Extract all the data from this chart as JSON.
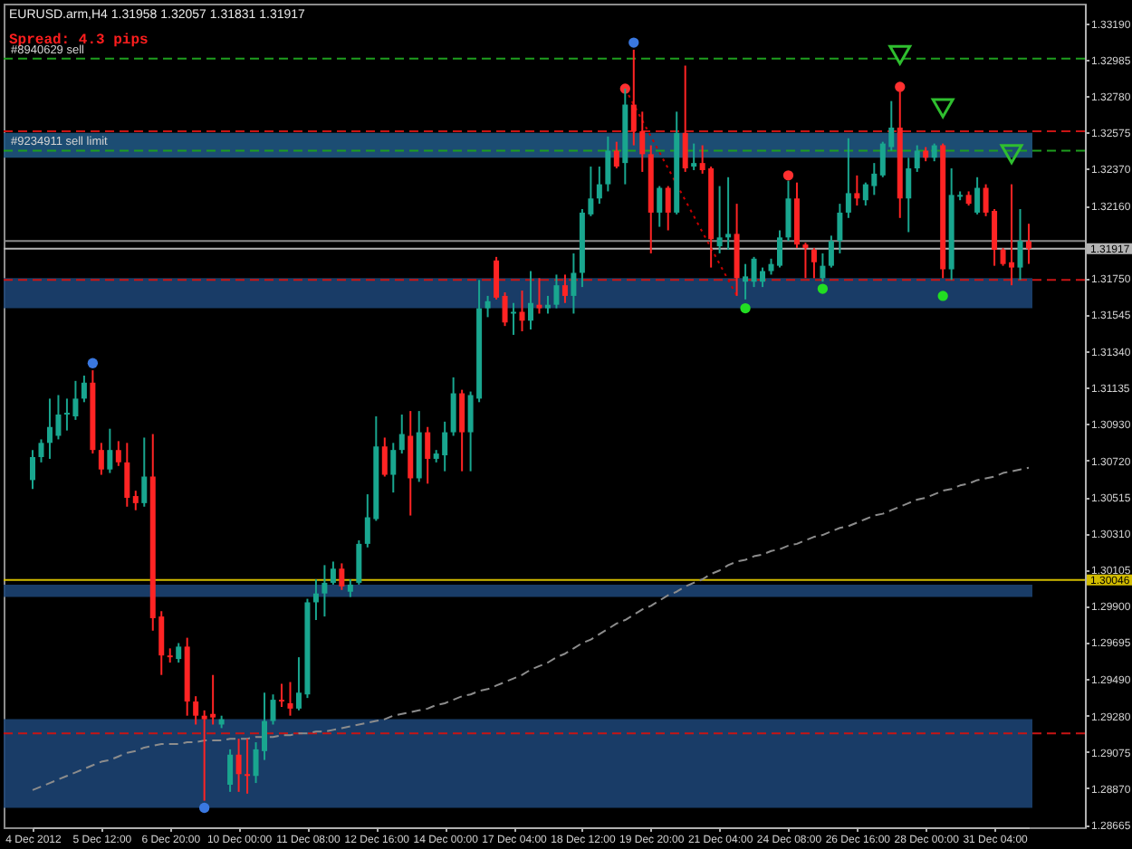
{
  "chart_data": {
    "type": "candlestick",
    "title": "EURUSD.arm,H4 1.31958 1.32057 1.31831 1.31917",
    "categories": [
      "4 Dec 2012",
      null,
      null,
      null,
      null,
      null,
      null,
      null,
      "5 Dec 12:00",
      null,
      null,
      null,
      null,
      null,
      null,
      null,
      "6 Dec 20:00",
      null,
      null,
      null,
      null,
      null,
      null,
      null,
      "10 Dec 00:00",
      null,
      null,
      null,
      null,
      null,
      null,
      null,
      "11 Dec 08:00",
      null,
      null,
      null,
      null,
      null,
      null,
      null,
      "12 Dec 16:00",
      null,
      null,
      null,
      null,
      null,
      null,
      null,
      "14 Dec 00:00",
      null,
      null,
      null,
      null,
      null,
      null,
      null,
      "17 Dec 04:00",
      null,
      null,
      null,
      null,
      null,
      null,
      null,
      "18 Dec 12:00",
      null,
      null,
      null,
      null,
      null,
      null,
      null,
      "19 Dec 20:00",
      null,
      null,
      null,
      null,
      null,
      null,
      null,
      "21 Dec 04:00",
      null,
      null,
      null,
      null,
      null,
      null,
      null,
      "24 Dec 08:00",
      null,
      null,
      null,
      null,
      null,
      null,
      null,
      "26 Dec 16:00",
      null,
      null,
      null,
      null,
      null,
      null,
      null,
      "28 Dec 00:00",
      null,
      null,
      null,
      null,
      null,
      null,
      null,
      "31 Dec 04:00",
      null,
      null,
      null,
      null
    ],
    "ohlc": [
      [
        1.3061,
        1.3078,
        1.3056,
        1.3074
      ],
      [
        1.3074,
        1.3084,
        1.3071,
        1.3082
      ],
      [
        1.3082,
        1.3107,
        1.3073,
        1.3091
      ],
      [
        1.3086,
        1.3109,
        1.3084,
        1.3098
      ],
      [
        1.3098,
        1.3107,
        1.3089,
        1.3099
      ],
      [
        1.3097,
        1.3117,
        1.3095,
        1.3107
      ],
      [
        1.3107,
        1.312,
        1.3105,
        1.3116
      ],
      [
        1.3116,
        1.3123,
        1.3076,
        1.3078
      ],
      [
        1.3078,
        1.3082,
        1.3064,
        1.3067
      ],
      [
        1.3067,
        1.309,
        1.3065,
        1.3078
      ],
      [
        1.3078,
        1.3083,
        1.3069,
        1.3071
      ],
      [
        1.3071,
        1.3082,
        1.3046,
        1.3051
      ],
      [
        1.3052,
        1.3055,
        1.3044,
        1.3048
      ],
      [
        1.3048,
        1.3085,
        1.3046,
        1.3063
      ],
      [
        1.3063,
        1.3087,
        1.2976,
        1.2983
      ],
      [
        1.2984,
        1.2987,
        1.2951,
        1.2962
      ],
      [
        1.2962,
        1.2966,
        1.2958,
        1.2961
      ],
      [
        1.296,
        1.2969,
        1.2958,
        1.2967
      ],
      [
        1.2967,
        1.2972,
        1.2928,
        1.2936
      ],
      [
        1.2936,
        1.2939,
        1.2923,
        1.2928
      ],
      [
        1.2928,
        1.2931,
        1.288,
        1.2926
      ],
      [
        1.2929,
        1.2951,
        1.2923,
        1.2927
      ],
      [
        1.2923,
        1.2928,
        1.2921,
        1.2926
      ],
      [
        1.2889,
        1.2909,
        1.2885,
        1.2906
      ],
      [
        1.2906,
        1.2915,
        1.2885,
        1.2895
      ],
      [
        1.2895,
        1.2915,
        1.2884,
        1.2894
      ],
      [
        1.2894,
        1.2913,
        1.289,
        1.2909
      ],
      [
        1.2908,
        1.2941,
        1.2903,
        1.2925
      ],
      [
        1.2925,
        1.294,
        1.2923,
        1.2937
      ],
      [
        1.2937,
        1.2946,
        1.2933,
        1.2936
      ],
      [
        1.2935,
        1.2947,
        1.2928,
        1.2932
      ],
      [
        1.2932,
        1.2961,
        1.2931,
        1.2941
      ],
      [
        1.294,
        1.2994,
        1.2938,
        1.2992
      ],
      [
        1.2992,
        1.3005,
        1.2982,
        1.2997
      ],
      [
        1.2997,
        1.3013,
        1.2984,
        1.3003
      ],
      [
        1.3003,
        1.3015,
        1.3002,
        1.3011
      ],
      [
        1.3011,
        1.3014,
        1.2999,
        1.3001
      ],
      [
        1.2998,
        1.3005,
        1.2995,
        1.3002
      ],
      [
        1.3003,
        1.3027,
        1.3002,
        1.3025
      ],
      [
        1.3025,
        1.3053,
        1.3023,
        1.304
      ],
      [
        1.3039,
        1.3097,
        1.3038,
        1.308
      ],
      [
        1.308,
        1.3085,
        1.3063,
        1.3064
      ],
      [
        1.3064,
        1.3082,
        1.3054,
        1.3078
      ],
      [
        1.3078,
        1.3098,
        1.3076,
        1.3087
      ],
      [
        1.3086,
        1.31,
        1.3041,
        1.3062
      ],
      [
        1.3062,
        1.31,
        1.306,
        1.3088
      ],
      [
        1.3088,
        1.3091,
        1.3059,
        1.3073
      ],
      [
        1.3073,
        1.3078,
        1.3071,
        1.3076
      ],
      [
        1.3075,
        1.3094,
        1.3066,
        1.3088
      ],
      [
        1.3088,
        1.3119,
        1.3086,
        1.311
      ],
      [
        1.311,
        1.3112,
        1.3066,
        1.3088
      ],
      [
        1.3088,
        1.3111,
        1.3066,
        1.3109
      ],
      [
        1.3107,
        1.3174,
        1.3105,
        1.3158
      ],
      [
        1.3158,
        1.3165,
        1.3153,
        1.3162
      ],
      [
        1.3185,
        1.3187,
        1.3163,
        1.3164
      ],
      [
        1.3165,
        1.3167,
        1.3148,
        1.315
      ],
      [
        1.3155,
        1.3161,
        1.3143,
        1.3156
      ],
      [
        1.3156,
        1.3168,
        1.3145,
        1.3151
      ],
      [
        1.3151,
        1.3179,
        1.3146,
        1.3161
      ],
      [
        1.316,
        1.3175,
        1.3155,
        1.3158
      ],
      [
        1.3158,
        1.3165,
        1.3155,
        1.316
      ],
      [
        1.316,
        1.3177,
        1.3158,
        1.3171
      ],
      [
        1.3171,
        1.3177,
        1.3161,
        1.3165
      ],
      [
        1.3165,
        1.3189,
        1.3155,
        1.3178
      ],
      [
        1.3178,
        1.3214,
        1.317,
        1.3212
      ],
      [
        1.3211,
        1.3238,
        1.321,
        1.322
      ],
      [
        1.322,
        1.3238,
        1.3217,
        1.3228
      ],
      [
        1.3228,
        1.3255,
        1.3224,
        1.3247
      ],
      [
        1.3247,
        1.3252,
        1.3237,
        1.3238
      ],
      [
        1.324,
        1.3282,
        1.3228,
        1.3273
      ],
      [
        1.3273,
        1.3304,
        1.325,
        1.3258
      ],
      [
        1.3258,
        1.3269,
        1.3235,
        1.3245
      ],
      [
        1.3245,
        1.325,
        1.3189,
        1.3212
      ],
      [
        1.3212,
        1.3227,
        1.3204,
        1.3226
      ],
      [
        1.3226,
        1.3227,
        1.3202,
        1.3212
      ],
      [
        1.3212,
        1.3269,
        1.3211,
        1.3257
      ],
      [
        1.3257,
        1.3295,
        1.3235,
        1.3237
      ],
      [
        1.3238,
        1.3251,
        1.3236,
        1.324
      ],
      [
        1.324,
        1.325,
        1.3234,
        1.3236
      ],
      [
        1.3237,
        1.3238,
        1.3181,
        1.3197
      ],
      [
        1.3193,
        1.3227,
        1.3189,
        1.3198
      ],
      [
        1.3198,
        1.3232,
        1.3191,
        1.32
      ],
      [
        1.32,
        1.3217,
        1.3165,
        1.3175
      ],
      [
        1.3173,
        1.3183,
        1.3163,
        1.3176
      ],
      [
        1.3173,
        1.3187,
        1.317,
        1.3186
      ],
      [
        1.3173,
        1.3181,
        1.317,
        1.3179
      ],
      [
        1.3179,
        1.3186,
        1.3177,
        1.3183
      ],
      [
        1.3182,
        1.3202,
        1.3181,
        1.3198
      ],
      [
        1.3198,
        1.323,
        1.3196,
        1.322
      ],
      [
        1.322,
        1.3229,
        1.3192,
        1.3194
      ],
      [
        1.3194,
        1.3195,
        1.3175,
        1.3192
      ],
      [
        1.3191,
        1.3192,
        1.3175,
        1.3184
      ],
      [
        1.3175,
        1.3189,
        1.3173,
        1.3182
      ],
      [
        1.3182,
        1.3199,
        1.3181,
        1.3196
      ],
      [
        1.3196,
        1.3217,
        1.3189,
        1.3212
      ],
      [
        1.3212,
        1.3254,
        1.3209,
        1.3223
      ],
      [
        1.3223,
        1.3233,
        1.3216,
        1.322
      ],
      [
        1.3219,
        1.3229,
        1.3216,
        1.3228
      ],
      [
        1.3227,
        1.324,
        1.3222,
        1.3234
      ],
      [
        1.3233,
        1.3252,
        1.3232,
        1.3251
      ],
      [
        1.3249,
        1.3275,
        1.3247,
        1.326
      ],
      [
        1.326,
        1.3281,
        1.3209,
        1.322
      ],
      [
        1.322,
        1.3243,
        1.3201,
        1.3237
      ],
      [
        1.3237,
        1.325,
        1.3235,
        1.3247
      ],
      [
        1.3247,
        1.3249,
        1.3241,
        1.3243
      ],
      [
        1.3243,
        1.3251,
        1.3241,
        1.325
      ],
      [
        1.325,
        1.3251,
        1.3175,
        1.318
      ],
      [
        1.318,
        1.3237,
        1.3174,
        1.3222
      ],
      [
        1.3221,
        1.3224,
        1.3219,
        1.3222
      ],
      [
        1.3222,
        1.3224,
        1.3216,
        1.3217
      ],
      [
        1.3212,
        1.3232,
        1.3211,
        1.3226
      ],
      [
        1.3226,
        1.3228,
        1.321,
        1.3212
      ],
      [
        1.3213,
        1.3214,
        1.3182,
        1.3191
      ],
      [
        1.3191,
        1.3192,
        1.3182,
        1.3183
      ],
      [
        1.3184,
        1.3228,
        1.3171,
        1.3181
      ],
      [
        1.3181,
        1.3214,
        1.3174,
        1.3196
      ],
      [
        1.31958,
        1.32057,
        1.31831,
        1.31917
      ]
    ],
    "colors": [
      "#19a68f",
      "#19a68f",
      "#19a68f",
      "#19a68f",
      "#19a68f",
      "#19a68f",
      "#19a68f",
      "#ff2424",
      "#ff2424",
      "#19a68f",
      "#ff2424",
      "#ff2424",
      "#ff2424",
      "#19a68f",
      "#ff2424",
      "#ff2424",
      "#ff2424",
      "#19a68f",
      "#ff2424",
      "#ff2424",
      "#ff2424",
      "#ff2424",
      "#19a68f",
      "#19a68f",
      "#ff2424",
      "#ff2424",
      "#19a68f",
      "#19a68f",
      "#19a68f",
      "#ff2424",
      "#ff2424",
      "#19a68f",
      "#19a68f",
      "#19a68f",
      "#19a68f",
      "#19a68f",
      "#ff2424",
      "#19a68f",
      "#19a68f",
      "#19a68f",
      "#19a68f",
      "#ff2424",
      "#19a68f",
      "#19a68f",
      "#ff2424",
      "#19a68f",
      "#ff2424",
      "#19a68f",
      "#19a68f",
      "#19a68f",
      "#ff2424",
      "#19a68f",
      "#19a68f",
      "#19a68f",
      "#ff2424",
      "#ff2424",
      "#19a68f",
      "#ff2424",
      "#19a68f",
      "#ff2424",
      "#19a68f",
      "#19a68f",
      "#ff2424",
      "#19a68f",
      "#19a68f",
      "#19a68f",
      "#19a68f",
      "#19a68f",
      "#ff2424",
      "#19a68f",
      "#ff2424",
      "#ff2424",
      "#ff2424",
      "#19a68f",
      "#ff2424",
      "#19a68f",
      "#ff2424",
      "#19a68f",
      "#ff2424",
      "#ff2424",
      "#19a68f",
      "#19a68f",
      "#ff2424",
      "#19a68f",
      "#19a68f",
      "#19a68f",
      "#19a68f",
      "#19a68f",
      "#19a68f",
      "#ff2424",
      "#ff2424",
      "#ff2424",
      "#19a68f",
      "#19a68f",
      "#19a68f",
      "#19a68f",
      "#ff2424",
      "#19a68f",
      "#19a68f",
      "#19a68f",
      "#19a68f",
      "#ff2424",
      "#19a68f",
      "#19a68f",
      "#ff2424",
      "#19a68f",
      "#ff2424",
      "#19a68f",
      "#19a68f",
      "#ff2424",
      "#19a68f",
      "#ff2424",
      "#ff2424",
      "#ff2424",
      "#ff2424",
      "#19a68f",
      "#ff2424"
    ],
    "series": [
      {
        "type": "line",
        "color": "#8c8c8c",
        "line_style": "dashed",
        "values": [
          1.2886,
          1.2888,
          1.289,
          1.2892,
          1.2894,
          1.2896,
          1.2898,
          1.29,
          1.2902,
          1.2903,
          1.2905,
          1.2907,
          1.2908,
          1.291,
          1.2911,
          1.2912,
          1.2912,
          1.2912,
          1.2913,
          1.2913,
          1.2914,
          1.2914,
          1.2914,
          1.2915,
          1.2915,
          1.2915,
          1.2916,
          1.2916,
          1.2916,
          1.2917,
          1.2917,
          1.2918,
          1.2918,
          1.2919,
          1.2919,
          1.292,
          1.2921,
          1.2922,
          1.2923,
          1.2924,
          1.2925,
          1.2926,
          1.2928,
          1.2929,
          1.293,
          1.2931,
          1.2932,
          1.2934,
          1.2935,
          1.2937,
          1.2939,
          1.294,
          1.2942,
          1.2943,
          1.2945,
          1.2947,
          1.2949,
          1.2951,
          1.2954,
          1.2956,
          1.2958,
          1.2961,
          1.2963,
          1.2966,
          1.2969,
          1.2971,
          1.2974,
          1.2977,
          1.298,
          1.2982,
          1.2985,
          1.2988,
          1.299,
          1.2993,
          1.2996,
          1.2998,
          1.3001,
          1.3003,
          1.3005,
          1.3008,
          1.301,
          1.3013,
          1.3015,
          1.3016,
          1.3018,
          1.3019,
          1.3021,
          1.3022,
          1.3024,
          1.3025,
          1.3027,
          1.3029,
          1.303,
          1.3032,
          1.3034,
          1.3035,
          1.3037,
          1.3039,
          1.3041,
          1.3042,
          1.3044,
          1.3046,
          1.3048,
          1.305,
          1.3051,
          1.3053,
          1.3055,
          1.3056,
          1.3058,
          1.3059,
          1.3061,
          1.3062,
          1.3063,
          1.3065,
          1.3066,
          1.3067,
          1.3068
        ]
      },
      {
        "type": "line",
        "color": "#c80000",
        "line_style": "dotted",
        "values": [
          null,
          null,
          null,
          null,
          null,
          null,
          null,
          null,
          null,
          null,
          null,
          null,
          null,
          null,
          null,
          null,
          null,
          null,
          null,
          null,
          null,
          null,
          null,
          null,
          null,
          null,
          null,
          null,
          null,
          null,
          null,
          null,
          null,
          null,
          null,
          null,
          null,
          null,
          null,
          null,
          null,
          null,
          null,
          null,
          null,
          null,
          null,
          null,
          null,
          null,
          null,
          null,
          null,
          null,
          null,
          null,
          null,
          null,
          null,
          null,
          null,
          null,
          null,
          null,
          null,
          null,
          null,
          null,
          null,
          1.3282,
          1.3273,
          1.3264,
          1.3255,
          1.3246,
          1.3237,
          1.3228,
          1.3219,
          1.321,
          1.3201,
          1.3192,
          1.3183,
          1.3174,
          1.3165,
          null,
          null,
          null,
          null,
          null,
          null,
          null,
          null,
          null,
          null,
          null,
          null,
          null,
          null,
          null,
          null,
          null,
          null,
          null,
          null,
          null,
          null,
          null,
          null,
          null,
          null,
          null,
          null,
          null,
          null,
          null,
          null,
          null,
          null
        ]
      },
      {
        "type": "scatter",
        "color": "#ff3030",
        "marker": "circle",
        "values": [
          null,
          null,
          null,
          null,
          null,
          null,
          null,
          null,
          null,
          null,
          null,
          null,
          null,
          null,
          null,
          null,
          null,
          null,
          null,
          null,
          null,
          null,
          null,
          null,
          null,
          null,
          null,
          null,
          null,
          null,
          null,
          null,
          null,
          null,
          null,
          null,
          null,
          null,
          null,
          null,
          null,
          null,
          null,
          null,
          null,
          null,
          null,
          null,
          null,
          null,
          null,
          null,
          null,
          null,
          null,
          null,
          null,
          null,
          null,
          null,
          null,
          null,
          null,
          null,
          null,
          null,
          null,
          null,
          null,
          1.3282,
          null,
          null,
          null,
          null,
          null,
          null,
          null,
          null,
          null,
          null,
          null,
          null,
          null,
          null,
          null,
          null,
          null,
          null,
          1.3233,
          null,
          null,
          null,
          null,
          null,
          null,
          null,
          null,
          null,
          null,
          null,
          null,
          1.3283,
          null,
          null,
          null,
          null,
          null,
          null,
          null,
          null,
          null,
          null,
          null,
          null,
          null,
          null,
          null
        ]
      },
      {
        "type": "scatter",
        "color": "#22dd22",
        "marker": "circle",
        "values": [
          null,
          null,
          null,
          null,
          null,
          null,
          null,
          null,
          null,
          null,
          null,
          null,
          null,
          null,
          null,
          null,
          null,
          null,
          null,
          null,
          null,
          null,
          null,
          null,
          null,
          null,
          null,
          null,
          null,
          null,
          null,
          null,
          null,
          null,
          null,
          null,
          null,
          null,
          null,
          null,
          null,
          null,
          null,
          null,
          null,
          null,
          null,
          null,
          null,
          null,
          null,
          null,
          null,
          null,
          null,
          null,
          null,
          null,
          null,
          null,
          null,
          null,
          null,
          null,
          null,
          null,
          null,
          null,
          null,
          null,
          null,
          null,
          null,
          null,
          null,
          null,
          null,
          null,
          null,
          null,
          null,
          null,
          null,
          1.3158,
          null,
          null,
          null,
          null,
          null,
          null,
          null,
          null,
          1.3169,
          null,
          null,
          null,
          null,
          null,
          null,
          null,
          null,
          null,
          null,
          null,
          null,
          null,
          1.3165,
          null,
          null,
          null,
          null,
          null,
          null,
          null,
          null,
          null,
          null
        ]
      },
      {
        "type": "scatter",
        "color": "#3a78e0",
        "marker": "circle",
        "values": [
          null,
          null,
          null,
          null,
          null,
          null,
          null,
          1.3127,
          null,
          null,
          null,
          null,
          null,
          null,
          null,
          null,
          null,
          null,
          null,
          null,
          1.2876,
          null,
          null,
          null,
          null,
          null,
          null,
          null,
          null,
          null,
          null,
          null,
          null,
          null,
          null,
          null,
          null,
          null,
          null,
          null,
          null,
          null,
          null,
          null,
          null,
          null,
          null,
          null,
          null,
          null,
          null,
          null,
          null,
          null,
          null,
          null,
          null,
          null,
          null,
          null,
          null,
          null,
          null,
          null,
          null,
          null,
          null,
          null,
          null,
          null,
          1.3308,
          null,
          null,
          null,
          null,
          null,
          null,
          null,
          null,
          null,
          null,
          null,
          null,
          null,
          null,
          null,
          null,
          null,
          null,
          null,
          null,
          null,
          null,
          null,
          null,
          null,
          null,
          null,
          null,
          null,
          null,
          null,
          null,
          null,
          null,
          null,
          null,
          null,
          null,
          null,
          null,
          null,
          null,
          null,
          null,
          null,
          null
        ]
      },
      {
        "type": "scatter",
        "color": "#2fbf2f",
        "marker": "triangle",
        "values": [
          null,
          null,
          null,
          null,
          null,
          null,
          null,
          null,
          null,
          null,
          null,
          null,
          null,
          null,
          null,
          null,
          null,
          null,
          null,
          null,
          null,
          null,
          null,
          null,
          null,
          null,
          null,
          null,
          null,
          null,
          null,
          null,
          null,
          null,
          null,
          null,
          null,
          null,
          null,
          null,
          null,
          null,
          null,
          null,
          null,
          null,
          null,
          null,
          null,
          null,
          null,
          null,
          null,
          null,
          null,
          null,
          null,
          null,
          null,
          null,
          null,
          null,
          null,
          null,
          null,
          null,
          null,
          null,
          null,
          null,
          null,
          null,
          null,
          null,
          null,
          null,
          null,
          null,
          null,
          null,
          null,
          null,
          null,
          null,
          null,
          null,
          null,
          null,
          null,
          null,
          null,
          null,
          null,
          null,
          null,
          null,
          null,
          null,
          null,
          null,
          null,
          1.3301,
          null,
          null,
          null,
          null,
          1.3271,
          null,
          null,
          null,
          null,
          null,
          null,
          null,
          1.3245,
          null,
          null
        ]
      }
    ],
    "ylim": [
      1.2865,
      1.333
    ],
    "yticks": [
      {
        "value": 1.3319,
        "label": "1.33190"
      },
      1.32985,
      {
        "value": 1.3278,
        "label": "1.32780"
      },
      1.32575,
      {
        "value": 1.3237,
        "label": "1.32370"
      },
      {
        "value": 1.3216,
        "label": "1.32160"
      },
      {
        "value": 1.3175,
        "label": "1.31750"
      },
      1.31545,
      {
        "value": 1.3134,
        "label": "1.31340"
      },
      1.31135,
      {
        "value": 1.3093,
        "label": "1.30930"
      },
      {
        "value": 1.3072,
        "label": "1.30720"
      },
      1.30515,
      {
        "value": 1.3031,
        "label": "1.30310"
      },
      1.30105,
      {
        "value": 1.299,
        "label": "1.29900"
      },
      1.29695,
      {
        "value": 1.2949,
        "label": "1.29490"
      },
      {
        "value": 1.2928,
        "label": "1.29280"
      },
      1.29075,
      {
        "value": 1.2887,
        "label": "1.28870"
      },
      1.28665
    ],
    "ref_lines": [
      {
        "axis": "y",
        "value": 1.3299,
        "color": "#1e9e1e",
        "line_style": "dashed"
      },
      {
        "axis": "y",
        "value": 1.3258,
        "color": "#c81414",
        "line_style": "dashed"
      },
      {
        "axis": "y",
        "value": 1.3247,
        "color": "#1e9e1e",
        "line_style": "dashed"
      },
      {
        "axis": "y",
        "value": 1.3196,
        "color": "#8a8a8a",
        "line_style": "solid"
      },
      {
        "axis": "y",
        "value": 1.31917,
        "label": "1.31917",
        "color": "#b4b4b4",
        "line_style": "solid"
      },
      {
        "axis": "y",
        "value": 1.3174,
        "color": "#c81414",
        "line_style": "dashed"
      },
      {
        "axis": "y",
        "value": 1.30046,
        "label": "1.30046",
        "color": "#d2bc00",
        "line_style": "solid"
      },
      {
        "axis": "y",
        "value": 1.2918,
        "color": "#c81414",
        "line_style": "dashed"
      }
    ],
    "bands": [
      {
        "axis": "y",
        "from": 1.3257,
        "to": 1.3243,
        "color": "#1f5580"
      },
      {
        "axis": "y",
        "from": 1.3175,
        "to": 1.3158,
        "color": "#1c4272"
      },
      {
        "axis": "y",
        "from": 1.3002,
        "to": 1.2995,
        "color": "#1c4272"
      },
      {
        "axis": "y",
        "from": 1.2926,
        "to": 1.2876,
        "color": "#1c4272"
      }
    ],
    "annotations": [
      "Spread: 4.3 pips",
      {
        "text": "#8940629 sell",
        "y": 1.3299
      },
      {
        "text": "#9234911 sell limit",
        "y": 1.3247
      }
    ]
  }
}
